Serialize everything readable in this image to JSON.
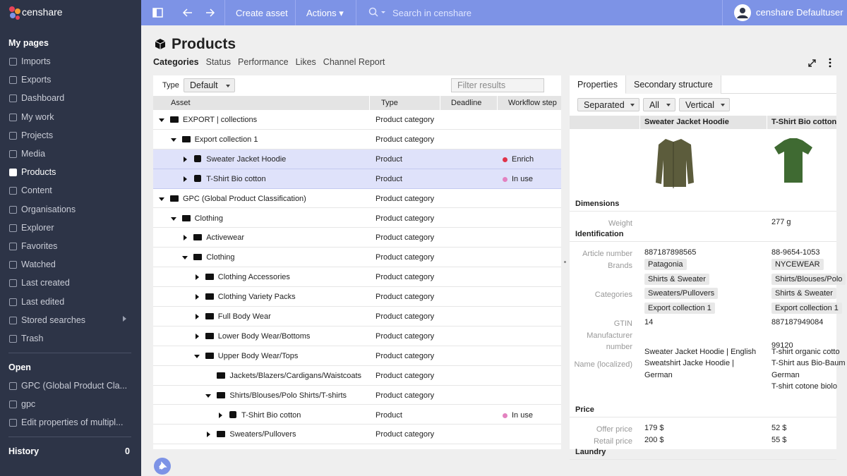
{
  "topbar": {
    "logo": "censhare",
    "create": "Create asset",
    "actions": "Actions",
    "search": "Search in censhare",
    "user": "censhare Defaultuser"
  },
  "sidebar": {
    "my_pages_title": "My pages",
    "items": [
      "Imports",
      "Exports",
      "Dashboard",
      "My work",
      "Projects",
      "Media",
      "Products",
      "Content",
      "Organisations",
      "Explorer",
      "Favorites",
      "Watched",
      "Last created",
      "Last edited",
      "Stored searches",
      "Trash"
    ],
    "active": "Products",
    "open_title": "Open",
    "open_items": [
      "GPC (Global Product Cla...",
      "gpc",
      "Edit properties of multipl..."
    ],
    "history_title": "History",
    "history_count": 0
  },
  "page": {
    "title": "Products",
    "tabs": [
      "Categories",
      "Status",
      "Performance",
      "Likes",
      "Channel Report"
    ]
  },
  "tree": {
    "type_label": "Type",
    "type_value": "Default",
    "filter_placeholder": "Filter results",
    "columns": [
      "Asset",
      "Type",
      "Deadline",
      "Workflow step"
    ],
    "rows": [
      {
        "name": "EXPORT | collections",
        "type": "Product category",
        "kind": "folder",
        "children": [
          {
            "name": "Export collection 1",
            "type": "Product category",
            "kind": "folder",
            "children": [
              {
                "name": "Sweater Jacket Hoodie",
                "type": "Product",
                "kind": "product",
                "workflow": "Enrich",
                "workflow_color": "#e0334a",
                "selected": true,
                "collapsed": true
              },
              {
                "name": "T-Shirt Bio cotton",
                "type": "Product",
                "kind": "product",
                "workflow": "In use",
                "workflow_color": "#e382c0",
                "selected": true,
                "collapsed": true
              }
            ]
          }
        ]
      },
      {
        "name": "GPC (Global Product Classification)",
        "type": "Product category",
        "kind": "folder",
        "children": [
          {
            "name": "Clothing",
            "type": "Product category",
            "kind": "folder",
            "children": [
              {
                "name": "Activewear",
                "type": "Product category",
                "kind": "folder",
                "collapsed": true
              },
              {
                "name": "Clothing",
                "type": "Product category",
                "kind": "folder",
                "children": [
                  {
                    "name": "Clothing Accessories",
                    "type": "Product category",
                    "kind": "folder",
                    "collapsed": true
                  },
                  {
                    "name": "Clothing Variety Packs",
                    "type": "Product category",
                    "kind": "folder",
                    "collapsed": true
                  },
                  {
                    "name": "Full Body Wear",
                    "type": "Product category",
                    "kind": "folder",
                    "collapsed": true
                  },
                  {
                    "name": "Lower Body Wear/Bottoms",
                    "type": "Product category",
                    "kind": "folder",
                    "collapsed": true
                  },
                  {
                    "name": "Upper Body Wear/Tops",
                    "type": "Product category",
                    "kind": "folder",
                    "children": [
                      {
                        "name": "Jackets/Blazers/Cardigans/Waistcoats",
                        "type": "Product category",
                        "kind": "folder"
                      },
                      {
                        "name": "Shirts/Blouses/Polo Shirts/T-shirts",
                        "type": "Product category",
                        "kind": "folder",
                        "children": [
                          {
                            "name": "T-Shirt Bio cotton",
                            "type": "Product",
                            "kind": "product",
                            "workflow": "In use",
                            "workflow_color": "#e382c0",
                            "collapsed": true
                          }
                        ]
                      },
                      {
                        "name": "Sweaters/Pullovers",
                        "type": "Product category",
                        "kind": "folder",
                        "collapsed": true
                      }
                    ]
                  }
                ]
              }
            ]
          }
        ]
      }
    ]
  },
  "details": {
    "tabs": [
      "Properties",
      "Secondary structure"
    ],
    "dropdowns": [
      "Separated",
      "All",
      "Vertical"
    ],
    "columns": [
      "Sweater Jacket Hoodie",
      "T-Shirt Bio cotton"
    ],
    "sections": [
      {
        "title": "Dimensions",
        "rows": [
          {
            "label": "Weight",
            "values": [
              null,
              "277 g"
            ]
          }
        ]
      },
      {
        "title": "Identification",
        "rows": [
          {
            "label": "Article number",
            "values": [
              "887187898565",
              "88-9654-1053"
            ]
          },
          {
            "label": "Brands",
            "chips": [
              [
                "Patagonia"
              ],
              [
                "NYCEWEAR"
              ]
            ]
          },
          {
            "label": "Categories",
            "chips": [
              [
                "Shirts & Sweater",
                "Sweaters/Pullovers",
                "Export collection 1"
              ],
              [
                "Shirts/Blouses/Polo",
                "Shirts & Sweater",
                "Export collection 1"
              ]
            ]
          },
          {
            "label": "GTIN",
            "values": [
              "14",
              "887187949084"
            ]
          },
          {
            "label": "Manufacturer number",
            "values": [
              null,
              "99120"
            ]
          },
          {
            "label": "Name (localized)",
            "lines": [
              [
                "Sweater Jacket Hoodie  |  English",
                "Sweatshirt Jacke Hoodie  |",
                "German"
              ],
              [
                "T-shirt organic cotto",
                "T-Shirt aus Bio-Baum",
                "German",
                "T-shirt cotone biolo"
              ]
            ]
          }
        ]
      },
      {
        "title": "Price",
        "rows": [
          {
            "label": "Offer price",
            "values": [
              "179 $",
              "52 $"
            ]
          },
          {
            "label": "Retail price",
            "values": [
              "200 $",
              "55 $"
            ]
          }
        ]
      },
      {
        "title": "Laundry",
        "rows": []
      }
    ]
  }
}
